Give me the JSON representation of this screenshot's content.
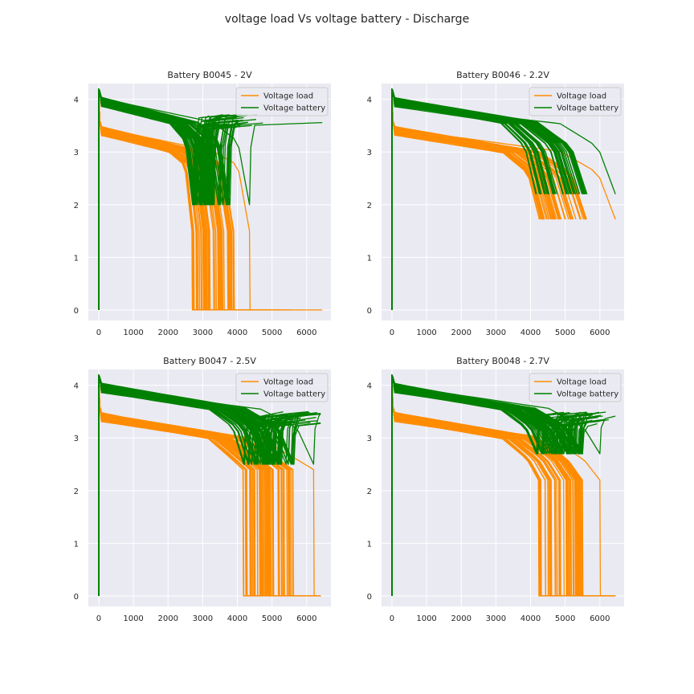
{
  "figure": {
    "title": "voltage load Vs voltage battery - Discharge"
  },
  "colors": {
    "voltage_load": "#ff8c00",
    "voltage_battery": "#008000",
    "axes_bg": "#eaeaf2",
    "grid": "#ffffff"
  },
  "chart_data": [
    {
      "type": "line",
      "title": "Battery B0045 - 2V",
      "xlabel": "",
      "ylabel": "",
      "xlim": [
        -300,
        6700
      ],
      "ylim": [
        -0.2,
        4.3
      ],
      "xticks": [
        "0",
        "1000",
        "2000",
        "3000",
        "4000",
        "5000",
        "6000"
      ],
      "yticks": [
        "0",
        "1",
        "2",
        "3",
        "4"
      ],
      "grid": true,
      "legend_position": "upper right",
      "series": [
        {
          "name": "Voltage load",
          "color_key": "voltage_load",
          "shape": "load_cutoff",
          "start": 3.4,
          "mid": 3.0,
          "knee": 2.75,
          "end_v": 1.5,
          "drop_to": 0.0,
          "end_x_min": 2650,
          "end_x_max": 3900,
          "outlier_end_x": 4350,
          "tail_x": 6450
        },
        {
          "name": "Voltage battery",
          "color_key": "voltage_battery",
          "shape": "battery_recover",
          "start": 3.95,
          "mid": 3.55,
          "knee": 3.2,
          "end_v": 2.0,
          "recover_to": 3.72,
          "end_x_min": 2700,
          "end_x_max": 3800,
          "outlier_end_x": 4350,
          "tail_x": 6450
        }
      ]
    },
    {
      "type": "line",
      "title": "Battery B0046 - 2.2V",
      "xlabel": "",
      "ylabel": "",
      "xlim": [
        -300,
        6700
      ],
      "ylim": [
        -0.2,
        4.3
      ],
      "xticks": [
        "0",
        "1000",
        "2000",
        "3000",
        "4000",
        "5000",
        "6000"
      ],
      "yticks": [
        "0",
        "1",
        "2",
        "3",
        "4"
      ],
      "grid": true,
      "legend_position": "upper right",
      "series": [
        {
          "name": "Voltage load",
          "color_key": "voltage_load",
          "shape": "load_plain",
          "start": 3.4,
          "mid": 3.0,
          "knee": 2.6,
          "end_v": 1.72,
          "end_x_min": 4250,
          "end_x_max": 5650,
          "outlier_end_x": 6450
        },
        {
          "name": "Voltage battery",
          "color_key": "voltage_battery",
          "shape": "battery_plain",
          "start": 3.95,
          "mid": 3.55,
          "knee": 3.1,
          "end_v": 2.2,
          "end_x_min": 4150,
          "end_x_max": 5650,
          "outlier_end_x": 6450
        }
      ]
    },
    {
      "type": "line",
      "title": "Battery B0047 - 2.5V",
      "xlabel": "",
      "ylabel": "",
      "xlim": [
        -300,
        6700
      ],
      "ylim": [
        -0.2,
        4.3
      ],
      "xticks": [
        "0",
        "1000",
        "2000",
        "3000",
        "4000",
        "5000",
        "6000"
      ],
      "yticks": [
        "0",
        "1",
        "2",
        "3",
        "4"
      ],
      "grid": true,
      "legend_position": "upper right",
      "series": [
        {
          "name": "Voltage load",
          "color_key": "voltage_load",
          "shape": "load_cutoff",
          "start": 3.4,
          "mid": 3.0,
          "knee": 2.6,
          "end_v": 2.4,
          "drop_to": 0.0,
          "end_x_min": 4150,
          "end_x_max": 5650,
          "outlier_end_x": 6200,
          "tail_x": 6400
        },
        {
          "name": "Voltage battery",
          "color_key": "voltage_battery",
          "shape": "battery_recover",
          "start": 3.95,
          "mid": 3.55,
          "knee": 3.2,
          "end_v": 2.5,
          "recover_to": 3.5,
          "end_x_min": 4150,
          "end_x_max": 5650,
          "outlier_end_x": 6200,
          "tail_x": 6400
        }
      ]
    },
    {
      "type": "line",
      "title": "Battery B0048 - 2.7V",
      "xlabel": "",
      "ylabel": "",
      "xlim": [
        -300,
        6700
      ],
      "ylim": [
        -0.2,
        4.3
      ],
      "xticks": [
        "0",
        "1000",
        "2000",
        "3000",
        "4000",
        "5000",
        "6000"
      ],
      "yticks": [
        "0",
        "1",
        "2",
        "3",
        "4"
      ],
      "grid": true,
      "legend_position": "upper right",
      "series": [
        {
          "name": "Voltage load",
          "color_key": "voltage_load",
          "shape": "load_cutoff",
          "start": 3.4,
          "mid": 3.0,
          "knee": 2.6,
          "end_v": 2.2,
          "drop_to": 0.0,
          "end_x_min": 4200,
          "end_x_max": 5500,
          "outlier_end_x": 6000,
          "tail_x": 6450
        },
        {
          "name": "Voltage battery",
          "color_key": "voltage_battery",
          "shape": "battery_recover",
          "start": 3.95,
          "mid": 3.55,
          "knee": 3.2,
          "end_v": 2.7,
          "recover_to": 3.5,
          "end_x_min": 4150,
          "end_x_max": 5500,
          "outlier_end_x": 6000,
          "tail_x": 6450
        }
      ]
    }
  ]
}
